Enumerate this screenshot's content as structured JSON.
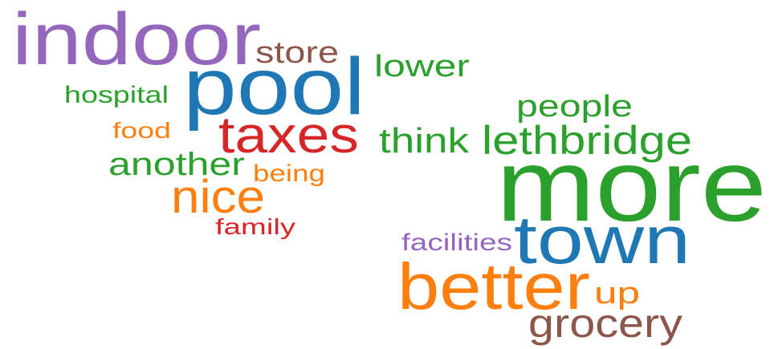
{
  "words": [
    {
      "text": "indoor",
      "color": "#9467bd"
    },
    {
      "text": "store",
      "color": "#8c564b"
    },
    {
      "text": "lower",
      "color": "#2ca02c"
    },
    {
      "text": "pool",
      "color": "#1f77b4"
    },
    {
      "text": "hospital",
      "color": "#2ca02c"
    },
    {
      "text": "people",
      "color": "#2ca02c"
    },
    {
      "text": "food",
      "color": "#ff7f0e"
    },
    {
      "text": "taxes",
      "color": "#d62728"
    },
    {
      "text": "think",
      "color": "#2ca02c"
    },
    {
      "text": "lethbridge",
      "color": "#2ca02c"
    },
    {
      "text": "another",
      "color": "#2ca02c"
    },
    {
      "text": "being",
      "color": "#ff7f0e"
    },
    {
      "text": "more",
      "color": "#2ca02c"
    },
    {
      "text": "nice",
      "color": "#ff7f0e"
    },
    {
      "text": "family",
      "color": "#d62728"
    },
    {
      "text": "facilities",
      "color": "#9467bd"
    },
    {
      "text": "town",
      "color": "#1f77b4"
    },
    {
      "text": "better",
      "color": "#ff7f0e"
    },
    {
      "text": "up",
      "color": "#ff7f0e"
    },
    {
      "text": "grocery",
      "color": "#8c564b"
    }
  ]
}
